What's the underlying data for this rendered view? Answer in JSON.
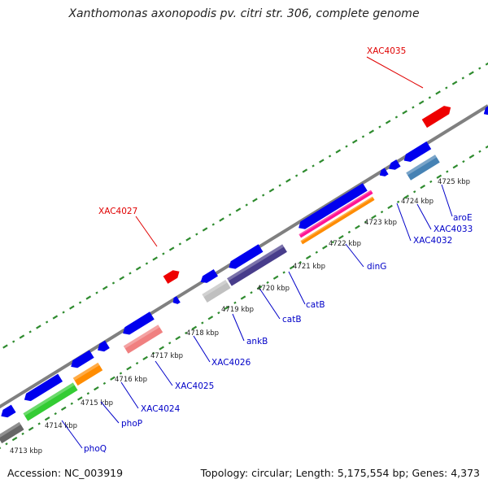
{
  "title": "Xanthomonas axonopodis pv. citri str. 306, complete genome",
  "footer": {
    "accession": "Accession: NC_003919",
    "summary": "Topology: circular; Length: 5,175,554 bp; Genes: 4,373"
  },
  "colors": {
    "backbone": "#808080",
    "tick_dots": "#2e8b2e",
    "forward_label": "#ff0000",
    "reverse_label": "#0000c8"
  },
  "scale_labels": [
    "4713 kbp",
    "4714 kbp",
    "4715 kbp",
    "4716 kbp",
    "4717 kbp",
    "4718 kbp",
    "4719 kbp",
    "4720 kbp",
    "4721 kbp",
    "4722 kbp",
    "4723 kbp",
    "4724 kbp",
    "4725 kbp"
  ],
  "features": [
    {
      "strand": "reverse",
      "color": "#0000ee"
    },
    {
      "strand": "reverse",
      "color": "#0000ee"
    },
    {
      "strand": "reverse",
      "color": "#0000ee"
    },
    {
      "strand": "reverse",
      "color": "#0000ee"
    },
    {
      "strand": "reverse",
      "color": "#0000ee"
    },
    {
      "strand": "reverse",
      "color": "#0000ee"
    },
    {
      "strand": "reverse",
      "color": "#0000ee"
    },
    {
      "strand": "reverse",
      "color": "#0000ee"
    },
    {
      "strand": "reverse",
      "color": "#0000ee"
    },
    {
      "strand": "reverse",
      "color": "#0000ee"
    },
    {
      "strand": "reverse",
      "color": "#0000ee"
    },
    {
      "strand": "reverse",
      "color": "#0000ee"
    },
    {
      "strand": "reverse",
      "color": "#0000ee"
    },
    {
      "strand": "forward",
      "color": "#ee0000"
    },
    {
      "strand": "forward",
      "color": "#ee0000"
    },
    {
      "strand": "forward",
      "color": "#0000ee"
    },
    {
      "strand": "track",
      "color": "#666666"
    },
    {
      "strand": "track",
      "color": "#33cc33"
    },
    {
      "strand": "track",
      "color": "#ff8c00"
    },
    {
      "strand": "track",
      "color": "#f08080"
    },
    {
      "strand": "track",
      "color": "#c0c0c0"
    },
    {
      "strand": "track",
      "color": "#483d8b"
    },
    {
      "strand": "track",
      "color": "#ff1493"
    },
    {
      "strand": "track",
      "color": "#ff8c00"
    },
    {
      "strand": "track",
      "color": "#4682b4"
    }
  ],
  "gene_labels": [
    {
      "name": "XAC4035",
      "strand": "forward"
    },
    {
      "name": "XAC4027",
      "strand": "forward"
    },
    {
      "name": "aroE",
      "strand": "reverse"
    },
    {
      "name": "XAC4033",
      "strand": "reverse"
    },
    {
      "name": "XAC4032",
      "strand": "reverse"
    },
    {
      "name": "dinG",
      "strand": "reverse"
    },
    {
      "name": "catB",
      "strand": "reverse"
    },
    {
      "name": "catB",
      "strand": "reverse"
    },
    {
      "name": "ankB",
      "strand": "reverse"
    },
    {
      "name": "XAC4026",
      "strand": "reverse"
    },
    {
      "name": "XAC4025",
      "strand": "reverse"
    },
    {
      "name": "XAC4024",
      "strand": "reverse"
    },
    {
      "name": "phoP",
      "strand": "reverse"
    },
    {
      "name": "phoQ",
      "strand": "reverse"
    }
  ]
}
